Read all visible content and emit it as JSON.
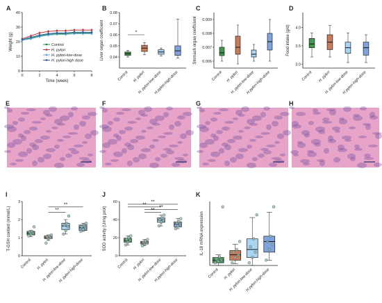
{
  "panel_letters": {
    "A": "A",
    "B": "B",
    "C": "C",
    "D": "D",
    "E": "E",
    "F": "F",
    "G": "G",
    "H": "H",
    "I": "I",
    "J": "J",
    "K": "K"
  },
  "groups": [
    "Control",
    "H. pylori",
    "H. pylori-low-dose",
    "H.pylori-high-dose"
  ],
  "legend_A": [
    "Control",
    "H. pylori",
    "H. pylori-low-dose",
    "H. pylori-high dose"
  ],
  "colors": {
    "control": "#2e8b3e",
    "hpylori": "#c0393b",
    "low": "#5aa9d6",
    "high": "#2f5fa8",
    "control_fill": "#3e9b4f",
    "hpylori_fill": "#c77c5a",
    "low_fill": "#a9d6f2",
    "high_fill": "#7fa3dc",
    "point": "#8fb8a8",
    "histo_pink": "#e7a4c8",
    "histo_purple": "#6a4a9c",
    "histo_scale": "#2b2b6e"
  },
  "chart_data": [
    {
      "panel": "A",
      "type": "line",
      "xlabel": "Time (week)",
      "ylabel": "Weight (g)",
      "xlim": [
        0,
        8
      ],
      "ylim": [
        0,
        40
      ],
      "xticks": [
        "0",
        "2",
        "4",
        "6",
        "8"
      ],
      "yticks": [
        "0",
        "10",
        "20",
        "30",
        "40"
      ],
      "x": [
        0,
        1,
        2,
        3,
        4,
        5,
        6,
        7,
        8
      ],
      "series": [
        {
          "name": "Control",
          "values": [
            21,
            22.5,
            24,
            25,
            25.5,
            25.5,
            26,
            26,
            26
          ]
        },
        {
          "name": "H. pylori",
          "values": [
            22,
            24,
            26,
            27,
            27.5,
            27.5,
            28,
            28,
            28
          ]
        },
        {
          "name": "H. pylori-low-dose",
          "values": [
            21,
            22,
            23.5,
            24.5,
            25,
            25,
            25.5,
            25.5,
            25.5
          ]
        },
        {
          "name": "H. pylori-high dose",
          "values": [
            21.5,
            23,
            24.5,
            25.5,
            26,
            26,
            26.5,
            26.5,
            26.5
          ]
        }
      ]
    },
    {
      "panel": "B",
      "type": "box",
      "ylabel": "Liver organ coefficient",
      "ylim": [
        0.03,
        0.08
      ],
      "yticks": [
        "0.04",
        "0.05",
        "0.06",
        "0.07",
        "0.08"
      ],
      "categories": [
        "Control",
        "H. pylori",
        "H. pylori-low-dose",
        "H.pylori-high-dose"
      ],
      "values": [
        {
          "q1": 0.0415,
          "median": 0.043,
          "q3": 0.0445,
          "min": 0.04,
          "max": 0.046
        },
        {
          "q1": 0.045,
          "median": 0.048,
          "q3": 0.0505,
          "min": 0.042,
          "max": 0.053
        },
        {
          "q1": 0.0425,
          "median": 0.0445,
          "q3": 0.0465,
          "min": 0.041,
          "max": 0.048
        },
        {
          "q1": 0.0415,
          "median": 0.0455,
          "q3": 0.05,
          "min": 0.039,
          "max": 0.074
        }
      ],
      "annotations": [
        "*"
      ]
    },
    {
      "panel": "C",
      "type": "box",
      "ylabel": "Stomach organ coefficient",
      "ylim": [
        0.0055,
        0.0095
      ],
      "yticks": [
        "0.006",
        "0.007",
        "0.008",
        "0.009"
      ],
      "categories": [
        "Control",
        "H. pylori",
        "H. pylori-low-dose",
        "H.pylori-high-dose"
      ],
      "values": [
        {
          "q1": 0.0064,
          "median": 0.0066,
          "q3": 0.007,
          "min": 0.006,
          "max": 0.0075
        },
        {
          "q1": 0.0065,
          "median": 0.007,
          "q3": 0.0078,
          "min": 0.0058,
          "max": 0.0086
        },
        {
          "q1": 0.0063,
          "median": 0.0065,
          "q3": 0.0068,
          "min": 0.006,
          "max": 0.0072
        },
        {
          "q1": 0.0068,
          "median": 0.0074,
          "q3": 0.008,
          "min": 0.006,
          "max": 0.009
        }
      ]
    },
    {
      "panel": "D",
      "type": "box",
      "ylabel": "Food intake (g/d)",
      "ylim": [
        2.9,
        4.4
      ],
      "yticks": [
        "3.0",
        "3.5",
        "4.0"
      ],
      "categories": [
        "Control",
        "H. pylori",
        "H. pylori-low-dose",
        "H.pylori-high-dose"
      ],
      "values": [
        {
          "q1": 3.45,
          "median": 3.55,
          "q3": 3.7,
          "min": 3.2,
          "max": 3.85
        },
        {
          "q1": 3.4,
          "median": 3.6,
          "q3": 3.8,
          "min": 3.2,
          "max": 4.05
        },
        {
          "q1": 3.3,
          "median": 3.45,
          "q3": 3.6,
          "min": 3.05,
          "max": 3.85
        },
        {
          "q1": 3.25,
          "median": 3.45,
          "q3": 3.6,
          "min": 3.05,
          "max": 3.8
        }
      ]
    },
    {
      "panel": "I",
      "type": "box",
      "ylabel": "T-GSH content (mmol/L)",
      "ylim": [
        0,
        3
      ],
      "yticks": [
        "0",
        "1",
        "2",
        "3"
      ],
      "categories": [
        "Control",
        "H. pylori",
        "H. pylori-low-dose",
        "H. pylori-high-dose"
      ],
      "values": [
        {
          "q1": 1.15,
          "median": 1.25,
          "q3": 1.35,
          "min": 1.05,
          "max": 1.4
        },
        {
          "q1": 0.95,
          "median": 1.0,
          "q3": 1.1,
          "min": 0.85,
          "max": 1.15
        },
        {
          "q1": 1.45,
          "median": 1.65,
          "q3": 1.8,
          "min": 1.2,
          "max": 2.0
        },
        {
          "q1": 1.4,
          "median": 1.55,
          "q3": 1.7,
          "min": 1.35,
          "max": 1.8
        }
      ],
      "points": [
        [
          1.1,
          1.2,
          1.25,
          1.3,
          1.35,
          1.6
        ],
        [
          0.7,
          0.95,
          1.0,
          1.05,
          1.1,
          1.15
        ],
        [
          1.2,
          1.4,
          1.6,
          1.7,
          1.8,
          2.2
        ],
        [
          1.35,
          1.45,
          1.55,
          1.6,
          1.7,
          1.8
        ]
      ],
      "annotations": [
        "**",
        "**"
      ]
    },
    {
      "panel": "J",
      "type": "box",
      "ylabel": "SOD activity (U/mg prot)",
      "ylim": [
        0,
        60
      ],
      "yticks": [
        "0",
        "20",
        "40",
        "60"
      ],
      "categories": [
        "Control",
        "H. pylori",
        "H. pylori-low-dose",
        "H.pylori-high-dose"
      ],
      "values": [
        {
          "q1": 15,
          "median": 17,
          "q3": 19.5,
          "min": 12,
          "max": 22
        },
        {
          "q1": 13,
          "median": 14.5,
          "q3": 16,
          "min": 11,
          "max": 18
        },
        {
          "q1": 37,
          "median": 39.5,
          "q3": 42,
          "min": 33,
          "max": 45
        },
        {
          "q1": 32,
          "median": 35,
          "q3": 37.5,
          "min": 30,
          "max": 41
        }
      ],
      "points": [
        [
          12,
          15,
          17,
          18,
          20,
          22
        ],
        [
          11,
          13,
          14,
          15,
          16,
          18
        ],
        [
          33,
          37,
          39,
          40,
          42,
          45
        ],
        [
          30,
          33,
          35,
          36,
          38,
          41
        ]
      ],
      "annotations": [
        "**",
        "**",
        "**",
        "**"
      ]
    },
    {
      "panel": "K",
      "type": "box",
      "ylabel": "IL-18 mRNA expression",
      "ylim": [
        0,
        12
      ],
      "yticks": [],
      "categories": [
        "Control",
        "H. pylori",
        "H. pylori-low-dose",
        "H.pylori-high-dose"
      ],
      "values": [
        {
          "q1": 0.5,
          "median": 1.0,
          "q3": 1.5,
          "min": 0.0,
          "max": 2.0
        },
        {
          "q1": 1.0,
          "median": 2.0,
          "q3": 2.8,
          "min": 0.3,
          "max": 4.0
        },
        {
          "q1": 1.5,
          "median": 3.0,
          "q3": 5.0,
          "min": 0.0,
          "max": 9.0
        },
        {
          "q1": 2.5,
          "median": 4.5,
          "q3": 5.5,
          "min": 1.0,
          "max": 10.0
        }
      ],
      "points": [
        [
          0.5,
          0.8,
          1.0,
          1.2,
          1.6,
          11.0
        ],
        [
          0.5,
          1.5,
          2.0,
          2.5,
          3.0,
          4.5
        ],
        [
          0.5,
          1.5,
          2.5,
          3.5,
          5.0,
          9.5
        ],
        [
          1.0,
          3.0,
          4.0,
          4.5,
          5.5,
          11.0
        ]
      ]
    }
  ]
}
